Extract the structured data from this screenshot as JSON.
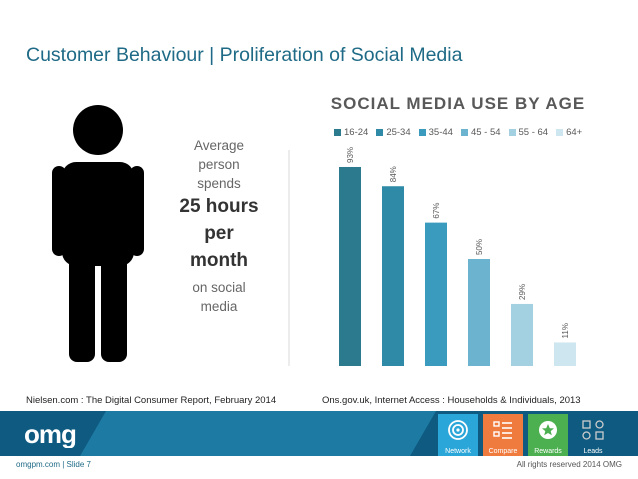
{
  "slide": {
    "title": "Customer Behaviour | Proliferation of Social Media"
  },
  "stat": {
    "line1": "Average",
    "line2": "person",
    "line3": "spends",
    "big1": "25 hours",
    "big2": "per",
    "big3": "month",
    "line4": "on social",
    "line5": "media"
  },
  "chart_data": {
    "type": "bar",
    "title": "SOCIAL MEDIA USE BY AGE",
    "categories": [
      "16-24",
      "25-34",
      "35-44",
      "45 - 54",
      "55 - 64",
      "64+"
    ],
    "values": [
      93,
      84,
      67,
      50,
      29,
      11
    ],
    "value_labels": [
      "93%",
      "84%",
      "67%",
      "50%",
      "29%",
      "11%"
    ],
    "colors": [
      "#2b7a8e",
      "#2e8aa6",
      "#3a9bbf",
      "#6cb3cf",
      "#a4d1e1",
      "#cde6ef"
    ],
    "ylim": [
      0,
      100
    ],
    "legend_position": "top",
    "grid": false
  },
  "sources": {
    "left": "Nielsen.com : The Digital Consumer Report, February 2014",
    "right": "Ons.gov.uk, Internet Access : Households & Individuals, 2013"
  },
  "footer": {
    "logo_text": "omg",
    "tiles": [
      {
        "label": "Network",
        "color": "#2ba6d8",
        "icon": "target-icon"
      },
      {
        "label": "Compare",
        "color": "#f07b3f",
        "icon": "list-icon"
      },
      {
        "label": "Rewards",
        "color": "#4caf50",
        "icon": "star-badge-icon"
      },
      {
        "label": "Leads",
        "color": "#0e5a80",
        "icon": "nodes-icon"
      }
    ],
    "left_text": "omgpm.com   |   Slide 7",
    "right_text": "All rights reserved 2014 OMG"
  }
}
